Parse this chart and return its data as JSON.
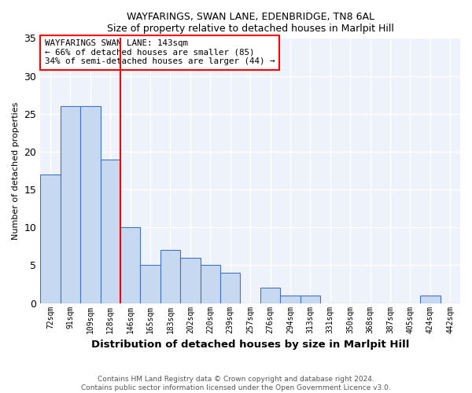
{
  "title1": "WAYFARINGS, SWAN LANE, EDENBRIDGE, TN8 6AL",
  "title2": "Size of property relative to detached houses in Marlpit Hill",
  "xlabel": "Distribution of detached houses by size in Marlpit Hill",
  "ylabel": "Number of detached properties",
  "categories": [
    "72sqm",
    "91sqm",
    "109sqm",
    "128sqm",
    "146sqm",
    "165sqm",
    "183sqm",
    "202sqm",
    "220sqm",
    "239sqm",
    "257sqm",
    "276sqm",
    "294sqm",
    "313sqm",
    "331sqm",
    "350sqm",
    "368sqm",
    "387sqm",
    "405sqm",
    "424sqm",
    "442sqm"
  ],
  "values": [
    17,
    26,
    26,
    19,
    10,
    5,
    7,
    6,
    5,
    4,
    0,
    2,
    1,
    1,
    0,
    0,
    0,
    0,
    0,
    1,
    0
  ],
  "bar_color": "#c6d9f0",
  "bar_edge_color": "#4472c4",
  "background_color": "#eef3fb",
  "grid_color": "#ffffff",
  "vline_x_index": 4,
  "vline_color": "red",
  "annotation_line1": "WAYFARINGS SWAN LANE: 143sqm",
  "annotation_line2": "← 66% of detached houses are smaller (85)",
  "annotation_line3": "34% of semi-detached houses are larger (44) →",
  "annotation_box_color": "white",
  "annotation_box_edge": "red",
  "ylim": [
    0,
    35
  ],
  "yticks": [
    0,
    5,
    10,
    15,
    20,
    25,
    30,
    35
  ],
  "footer1": "Contains HM Land Registry data © Crown copyright and database right 2024.",
  "footer2": "Contains public sector information licensed under the Open Government Licence v3.0."
}
